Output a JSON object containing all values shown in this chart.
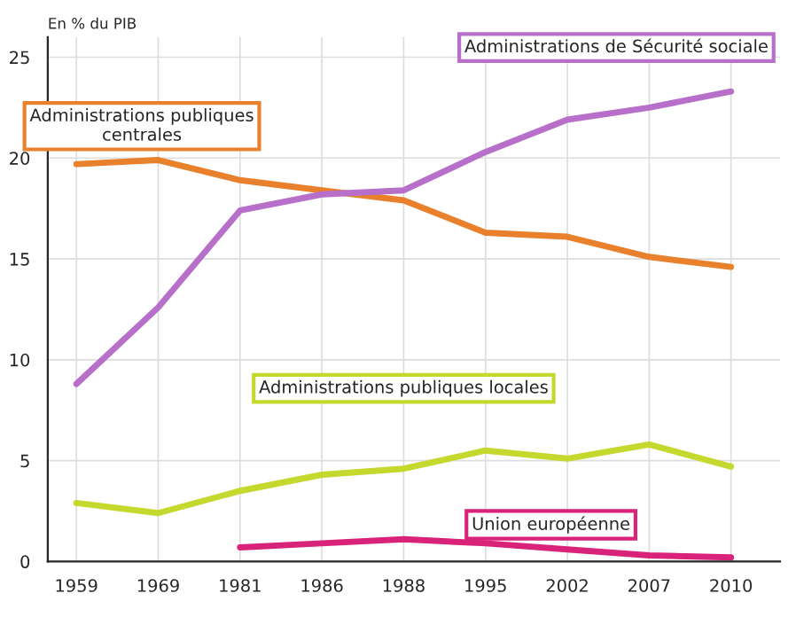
{
  "chart_data": {
    "type": "line",
    "ylabel": "En % du PIB",
    "categories": [
      "1959",
      "1969",
      "1981",
      "1986",
      "1988",
      "1995",
      "2002",
      "2007",
      "2010"
    ],
    "series": [
      {
        "name": "Administrations publiques centrales",
        "color": "#e8802c",
        "values": [
          19.7,
          19.9,
          18.9,
          18.4,
          17.9,
          16.3,
          16.1,
          15.1,
          14.6
        ]
      },
      {
        "name": "Administrations de Sécurité sociale",
        "color": "#b76fc9",
        "values": [
          8.8,
          12.6,
          17.4,
          18.2,
          18.4,
          20.3,
          21.9,
          22.5,
          23.3
        ]
      },
      {
        "name": "Administrations publiques locales",
        "color": "#c5d82e",
        "values": [
          2.9,
          2.4,
          3.5,
          4.3,
          4.6,
          5.5,
          5.1,
          5.8,
          4.7
        ]
      },
      {
        "name": "Union européenne",
        "color": "#d9237a",
        "values": [
          null,
          null,
          0.7,
          0.9,
          1.1,
          0.9,
          0.6,
          0.3,
          0.2
        ]
      }
    ],
    "ylim": [
      0,
      26
    ],
    "yticks": [
      0,
      5,
      10,
      15,
      20,
      25
    ],
    "grid": true,
    "legend": false,
    "marker": "none",
    "line_style": "solid"
  }
}
